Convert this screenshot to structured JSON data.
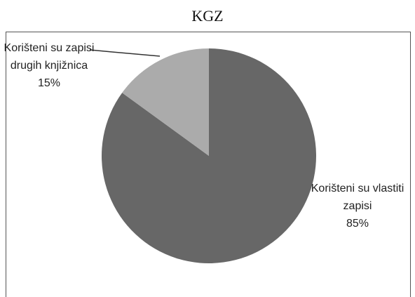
{
  "chart_data": {
    "type": "pie",
    "title": "KGZ",
    "categories": [
      "Korišteni su vlastiti zapisi",
      "Korišteni su zapisi drugih knjižnica"
    ],
    "values": [
      85,
      15
    ],
    "value_labels": [
      "85%",
      "15%"
    ],
    "colors": [
      "#676767",
      "#ababab"
    ]
  }
}
